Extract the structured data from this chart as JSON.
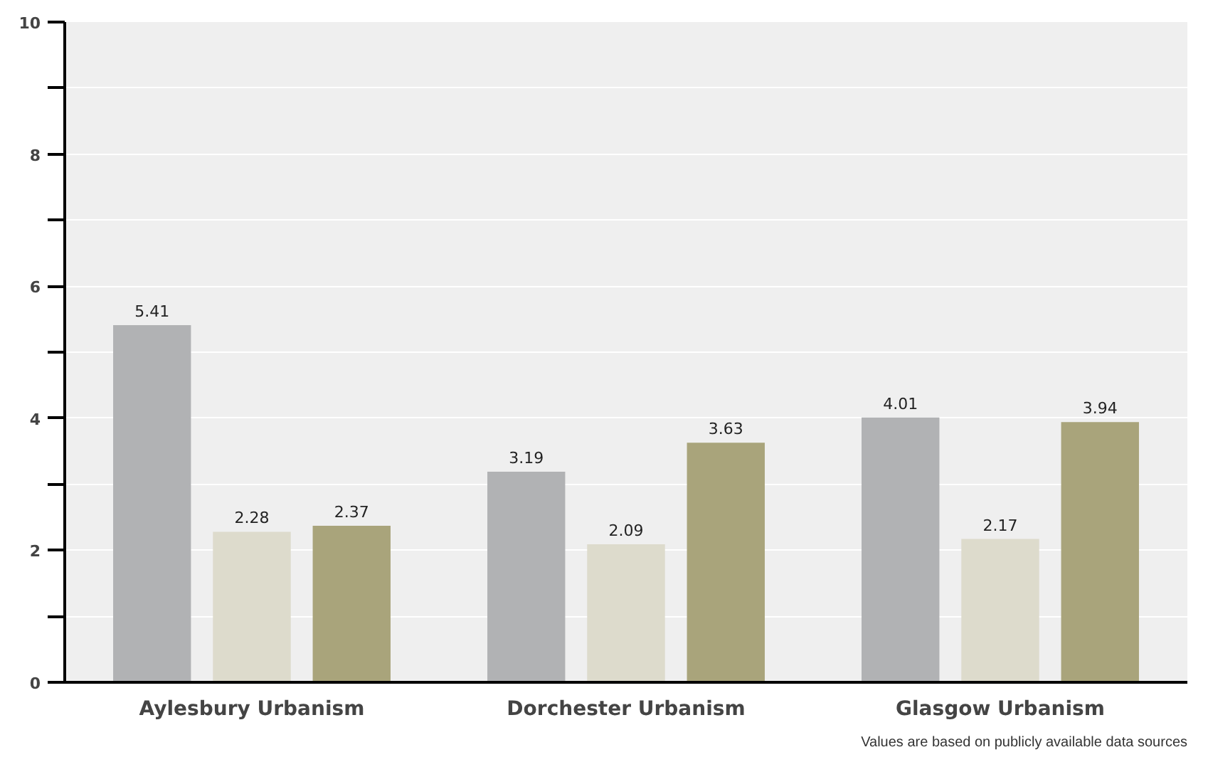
{
  "chart_data": {
    "type": "bar",
    "categories": [
      "Aylesbury Urbanism",
      "Dorchester Urbanism",
      "Glasgow Urbanism"
    ],
    "series": [
      {
        "color": "#b1b2b4",
        "values": [
          5.41,
          3.19,
          4.01
        ]
      },
      {
        "color": "#dddbcc",
        "values": [
          2.28,
          2.09,
          2.17
        ]
      },
      {
        "color": "#a9a47b",
        "values": [
          2.37,
          3.63,
          3.94
        ]
      }
    ],
    "ylim": [
      0,
      10
    ],
    "yticks": [
      0,
      {
        "value": 1,
        "label": null
      },
      2,
      {
        "value": 3,
        "label": null
      },
      4,
      {
        "value": 5,
        "label": null
      },
      6,
      {
        "value": 7,
        "label": null
      },
      8,
      {
        "value": 9,
        "label": null
      },
      10
    ],
    "grid": "y",
    "data_labels": true,
    "annotations": [
      "Values are based on publicly available data sources"
    ]
  }
}
